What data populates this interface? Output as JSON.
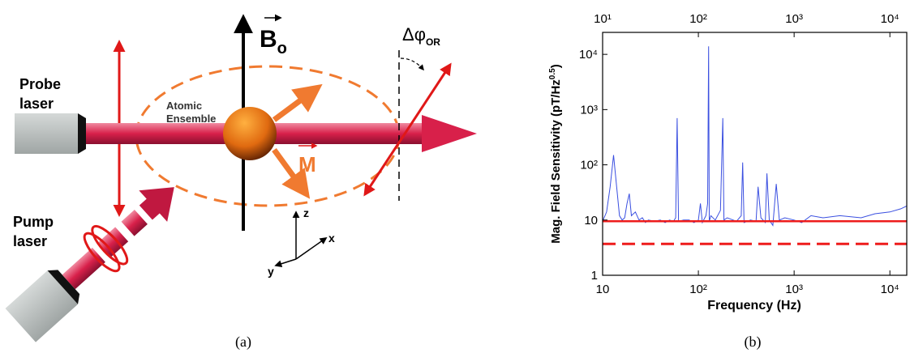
{
  "diagram": {
    "probe": [
      "Probe",
      "laser"
    ],
    "pump": [
      "Pump",
      "laser"
    ],
    "ensemble": [
      "Atomic",
      "Ensemble"
    ],
    "field": [
      "B",
      "o"
    ],
    "magnetization": "M",
    "rotation": [
      "Δφ",
      "OR"
    ],
    "axes": {
      "z": "z",
      "x": "x",
      "y": "y"
    },
    "caption": "(a)"
  },
  "chart_data": {
    "type": "line",
    "caption": "(b)",
    "xlabel": "Frequency  (Hz)",
    "ylabel": [
      "Mag. Field Sensitivity (pT/Hz",
      "0.5",
      ")"
    ],
    "log_x": true,
    "log_y": true,
    "xlim": [
      10,
      15000
    ],
    "ylim": [
      1,
      25000
    ],
    "xticks": [
      10,
      {
        "value": 100,
        "label": "10²"
      },
      {
        "value": 1000,
        "label": "10³"
      },
      {
        "value": 10000,
        "label": "10⁴"
      }
    ],
    "x2ticks": [
      {
        "value": 10,
        "label": "10¹"
      },
      {
        "value": 100,
        "label": "10²"
      },
      {
        "value": 1000,
        "label": "10³"
      },
      {
        "value": 10000,
        "label": "10⁴"
      }
    ],
    "yticks": [
      1,
      10,
      {
        "value": 100,
        "label": "10²"
      },
      {
        "value": 1000,
        "label": "10³"
      },
      {
        "value": 10000,
        "label": "10⁴"
      }
    ],
    "series": [
      {
        "color": "#3a4fe0",
        "x": [
          10,
          11,
          12,
          13,
          14,
          15,
          16,
          17,
          18,
          19,
          20,
          22,
          24,
          26,
          28,
          30,
          35,
          40,
          45,
          50,
          55,
          58,
          60,
          62,
          70,
          80,
          90,
          100,
          105,
          110,
          120,
          125,
          128,
          130,
          135,
          150,
          170,
          180,
          185,
          200,
          250,
          280,
          290,
          300,
          350,
          400,
          420,
          450,
          500,
          520,
          550,
          600,
          650,
          700,
          800,
          1000,
          1200,
          1500,
          2000,
          3000,
          5000,
          7000,
          10000,
          13000,
          15000
        ],
        "values": [
          9.5,
          14,
          40,
          150,
          40,
          12,
          10,
          11,
          20,
          30,
          12,
          14,
          10,
          11,
          9,
          10,
          9.5,
          10,
          9,
          10,
          9.5,
          11,
          700,
          9.5,
          10,
          10,
          9,
          10,
          20,
          9,
          12,
          20,
          14000,
          9.5,
          12,
          10,
          15,
          700,
          10,
          11,
          9.5,
          12,
          110,
          9,
          10,
          9.5,
          40,
          11,
          9,
          70,
          10,
          8,
          45,
          10,
          11,
          10,
          9,
          12,
          11,
          12,
          11,
          13,
          14,
          16,
          18
        ]
      },
      {
        "color": "#ee1c1c",
        "x": [
          10,
          15000
        ],
        "values": [
          9.5,
          9.5
        ]
      },
      {
        "color": "#ee1c1c",
        "dash": true,
        "x": [
          10,
          15000
        ],
        "values": [
          3.7,
          3.7
        ]
      }
    ]
  }
}
